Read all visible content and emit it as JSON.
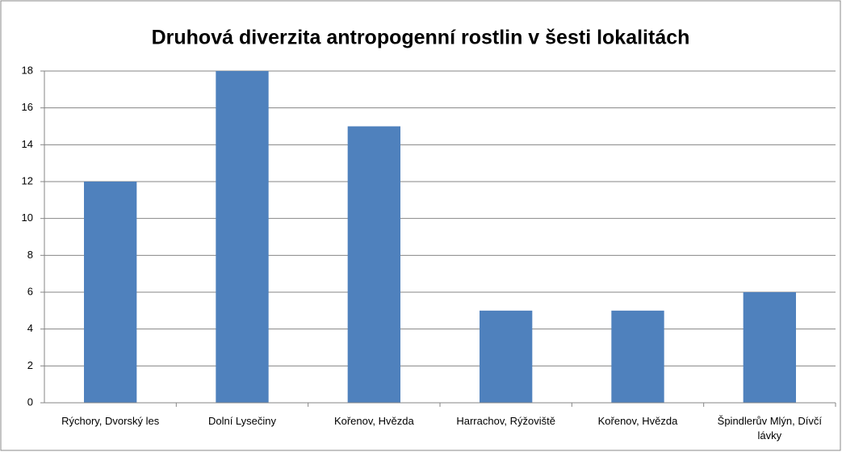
{
  "chart_data": {
    "type": "bar",
    "title": "Druhová diverzita antropogenní rostlin v šesti lokalitách",
    "categories": [
      "Rýchory, Dvorský les",
      "Dolní Lysečiny",
      "Kořenov, Hvězda",
      "Harrachov, Rýžoviště",
      "Kořenov, Hvězda",
      "Špindlerův Mlýn, Dívčí lávky"
    ],
    "values": [
      12,
      18,
      15,
      5,
      5,
      6
    ],
    "color": "#4f81bd",
    "ylim": [
      0,
      18
    ],
    "yticks": [
      0,
      2,
      4,
      6,
      8,
      10,
      12,
      14,
      16,
      18
    ],
    "grid": true
  }
}
